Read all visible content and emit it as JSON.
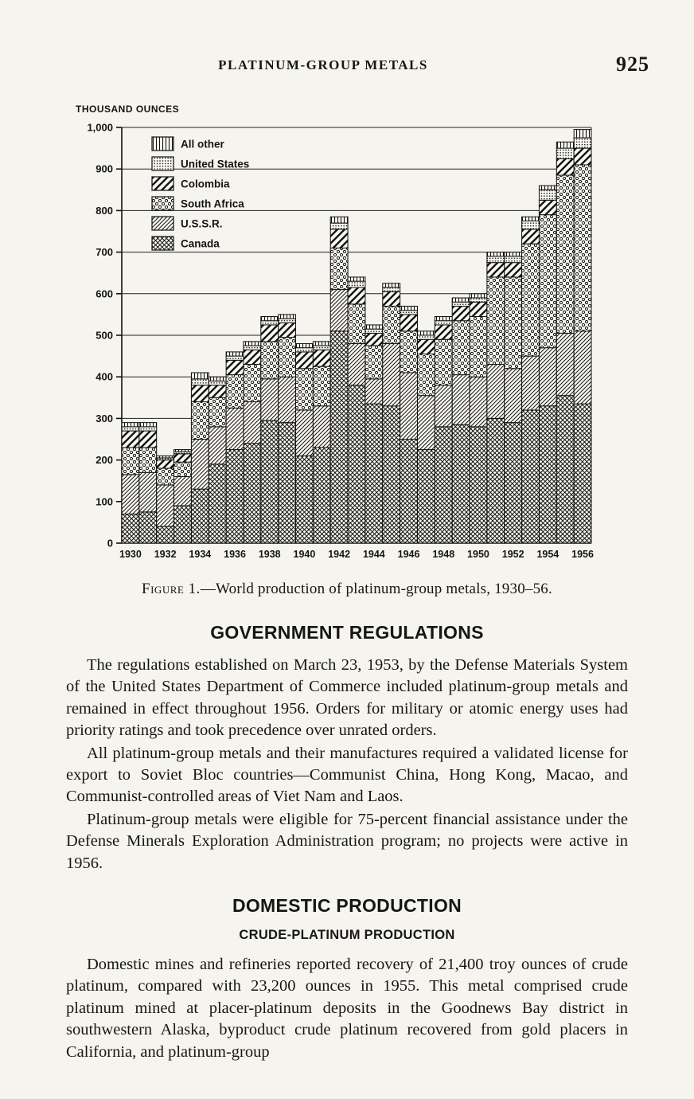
{
  "page": {
    "header_title": "PLATINUM-GROUP METALS",
    "page_number": "925"
  },
  "figure": {
    "caption_label": "Figure 1.",
    "caption_text": "—World production of platinum-group metals, 1930–56."
  },
  "sections": {
    "gov_heading": "GOVERNMENT REGULATIONS",
    "gov_p1": "The regulations established on March 23, 1953, by the Defense Materials System of the United States Department of Commerce included platinum-group metals and remained in effect throughout 1956. Orders for military or atomic energy uses had priority ratings and took precedence over unrated orders.",
    "gov_p2": "All platinum-group metals and their manufactures required a validated license for export to Soviet Bloc countries—Communist China, Hong Kong, Macao, and Communist-controlled areas of Viet Nam and Laos.",
    "gov_p3": "Platinum-group metals were eligible for 75-percent financial assistance under the Defense Minerals Exploration Administration program; no projects were active in 1956.",
    "domestic_heading": "DOMESTIC PRODUCTION",
    "crude_heading": "CRUDE-PLATINUM PRODUCTION",
    "crude_p1": "Domestic mines and refineries reported recovery of 21,400 troy ounces of crude platinum, compared with 23,200 ounces in 1955.  This metal comprised crude platinum mined at placer-platinum deposits in the Goodnews Bay district in southwestern Alaska, byproduct crude platinum recovered from gold placers in California, and platinum-group"
  },
  "chart_data": {
    "type": "bar",
    "stacked": true,
    "ylabel": "THOUSAND OUNCES",
    "ylim": [
      0,
      1000
    ],
    "ytick_step": 100,
    "ytick_labels": [
      "0",
      "100",
      "200",
      "300",
      "400",
      "500",
      "600",
      "700",
      "800",
      "900",
      "1,000"
    ],
    "categories": [
      "1930",
      "1931",
      "1932",
      "1933",
      "1934",
      "1935",
      "1936",
      "1937",
      "1938",
      "1939",
      "1940",
      "1941",
      "1942",
      "1943",
      "1944",
      "1945",
      "1946",
      "1947",
      "1948",
      "1949",
      "1950",
      "1951",
      "1952",
      "1953",
      "1954",
      "1955",
      "1956"
    ],
    "x_label_step": 2,
    "grid": "horizontal",
    "legend_position": "top-left-inside",
    "legend_order": [
      "All other",
      "United States",
      "Colombia",
      "South Africa",
      "U.S.S.R.",
      "Canada"
    ],
    "series": [
      {
        "name": "Canada",
        "pattern": "dense-crosshatch",
        "values": [
          70,
          75,
          40,
          90,
          130,
          190,
          225,
          240,
          295,
          290,
          210,
          230,
          510,
          380,
          335,
          330,
          250,
          225,
          280,
          285,
          280,
          300,
          290,
          320,
          330,
          355,
          335
        ]
      },
      {
        "name": "U.S.S.R.",
        "pattern": "diagonal-hatch",
        "values": [
          95,
          95,
          100,
          70,
          120,
          90,
          100,
          100,
          100,
          110,
          110,
          100,
          100,
          100,
          60,
          150,
          160,
          130,
          100,
          120,
          120,
          130,
          130,
          130,
          140,
          150,
          175
        ]
      },
      {
        "name": "South Africa",
        "pattern": "open-dots",
        "values": [
          65,
          60,
          40,
          35,
          90,
          70,
          80,
          90,
          90,
          95,
          100,
          95,
          100,
          95,
          80,
          90,
          100,
          100,
          110,
          130,
          145,
          210,
          220,
          270,
          320,
          380,
          400
        ]
      },
      {
        "name": "Colombia",
        "pattern": "wide-diagonal",
        "values": [
          40,
          40,
          20,
          20,
          40,
          30,
          35,
          35,
          40,
          35,
          40,
          40,
          45,
          40,
          30,
          35,
          40,
          35,
          35,
          35,
          35,
          35,
          35,
          35,
          35,
          40,
          40
        ]
      },
      {
        "name": "United States",
        "pattern": "fine-dots",
        "values": [
          10,
          10,
          5,
          5,
          15,
          10,
          10,
          10,
          10,
          10,
          10,
          10,
          15,
          15,
          10,
          10,
          10,
          10,
          10,
          10,
          10,
          15,
          15,
          20,
          25,
          25,
          25
        ]
      },
      {
        "name": "All other",
        "pattern": "vertical-lines",
        "values": [
          10,
          10,
          5,
          5,
          15,
          10,
          10,
          10,
          10,
          10,
          10,
          10,
          15,
          10,
          10,
          10,
          10,
          10,
          10,
          10,
          10,
          10,
          10,
          10,
          10,
          15,
          20
        ]
      }
    ]
  }
}
